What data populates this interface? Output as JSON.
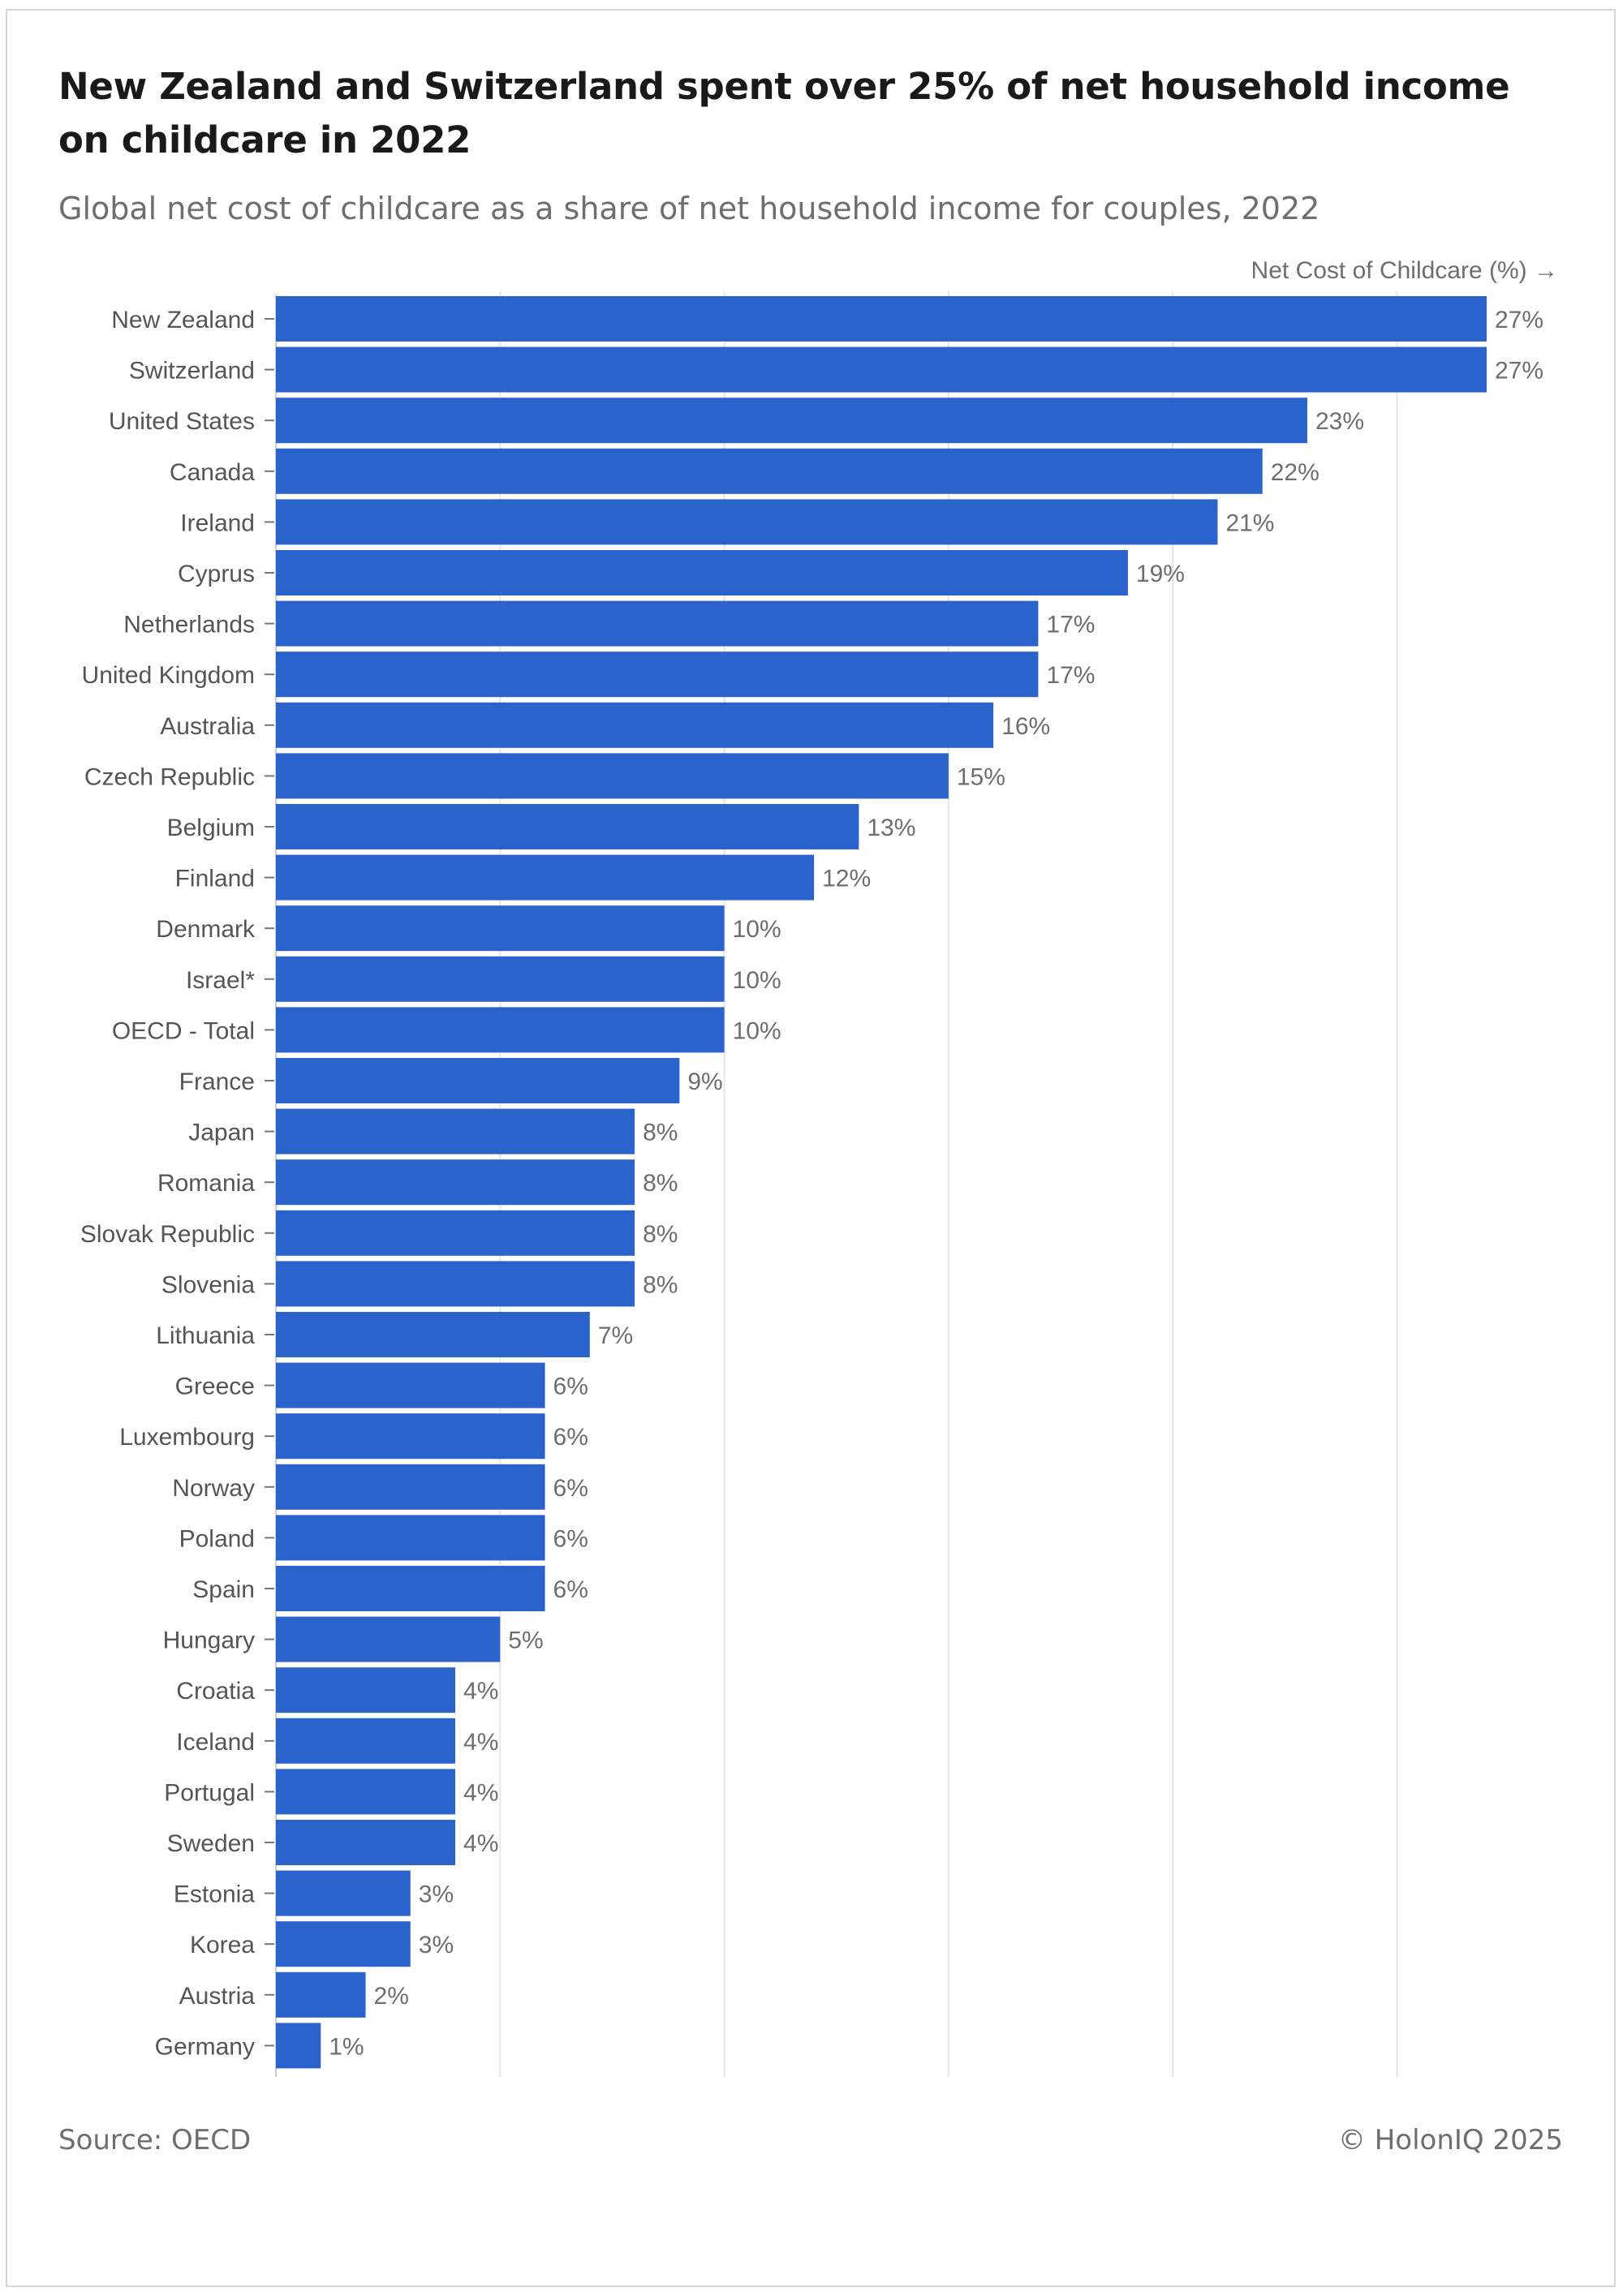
{
  "chart_data": {
    "type": "bar",
    "orientation": "horizontal",
    "title": "New Zealand and Switzerland spent over 25% of net household income on childcare in 2022",
    "subtitle": "Global net cost of childcare as a share of net household income for couples, 2022",
    "axis_label": "Net Cost of Childcare (%) →",
    "xlim": [
      0,
      27
    ],
    "gridlines": [
      0,
      5,
      10,
      15,
      20,
      25
    ],
    "value_suffix": "%",
    "categories": [
      "New Zealand",
      "Switzerland",
      "United States",
      "Canada",
      "Ireland",
      "Cyprus",
      "Netherlands",
      "United Kingdom",
      "Australia",
      "Czech Republic",
      "Belgium",
      "Finland",
      "Denmark",
      "Israel*",
      "OECD - Total",
      "France",
      "Japan",
      "Romania",
      "Slovak Republic",
      "Slovenia",
      "Lithuania",
      "Greece",
      "Luxembourg",
      "Norway",
      "Poland",
      "Spain",
      "Hungary",
      "Croatia",
      "Iceland",
      "Portugal",
      "Sweden",
      "Estonia",
      "Korea",
      "Austria",
      "Germany"
    ],
    "values": [
      27,
      27,
      23,
      22,
      21,
      19,
      17,
      17,
      16,
      15,
      13,
      12,
      10,
      10,
      10,
      9,
      8,
      8,
      8,
      8,
      7,
      6,
      6,
      6,
      6,
      6,
      5,
      4,
      4,
      4,
      4,
      3,
      3,
      2,
      1
    ],
    "bar_color": "#2b63cc",
    "grid_color": "#e6e6e6",
    "label_color": "#555555"
  },
  "footer": {
    "source": "Source: OECD",
    "copyright": "© HolonIQ 2025"
  }
}
